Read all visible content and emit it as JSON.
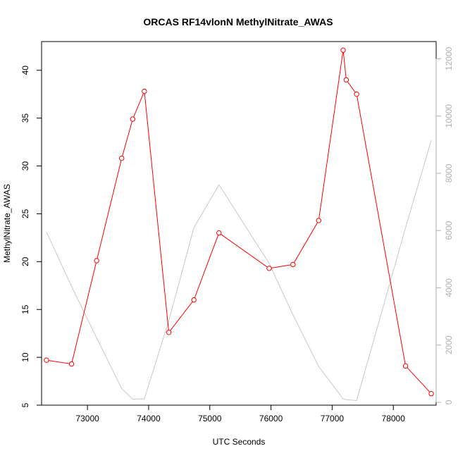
{
  "chart_data": {
    "type": "line",
    "title": "ORCAS RF14vlonN MethylNitrate_AWAS",
    "xlabel": "UTC Seconds",
    "ylabel": "MethylNitrate_AWAS",
    "y2label": "",
    "xlim": [
      72250,
      78700
    ],
    "ylim": [
      5,
      43
    ],
    "y2lim": [
      -100,
      12600
    ],
    "xticks": [
      73000,
      74000,
      75000,
      76000,
      77000,
      78000
    ],
    "yticks": [
      5,
      10,
      15,
      20,
      25,
      30,
      35,
      40
    ],
    "y2ticks": [
      0,
      2000,
      4000,
      6000,
      8000,
      10000,
      12000
    ],
    "grid": false,
    "series": [
      {
        "role": "primary",
        "axis": "left",
        "color": "#ff0000",
        "markers": "open-circle",
        "x": [
          72330,
          72740,
          73150,
          73560,
          73740,
          73930,
          74330,
          74740,
          75150,
          75970,
          76360,
          76780,
          77180,
          77230,
          77400,
          78200,
          78620
        ],
        "y": [
          9.7,
          9.3,
          20.1,
          30.8,
          34.9,
          37.8,
          12.6,
          16.0,
          23.0,
          19.3,
          19.7,
          24.3,
          42.1,
          39.0,
          37.5,
          9.1,
          6.2
        ]
      },
      {
        "role": "secondary",
        "axis": "right",
        "color": "#c8c8c8",
        "markers": "none",
        "x": [
          72330,
          72740,
          73150,
          73560,
          73740,
          73930,
          74330,
          74740,
          75150,
          75970,
          76360,
          76780,
          77180,
          77230,
          77400,
          78200,
          78620
        ],
        "y": [
          5950,
          4050,
          2250,
          480,
          110,
          120,
          2850,
          6100,
          7600,
          4850,
          3050,
          1250,
          120,
          90,
          60,
          6100,
          9150
        ]
      }
    ]
  }
}
